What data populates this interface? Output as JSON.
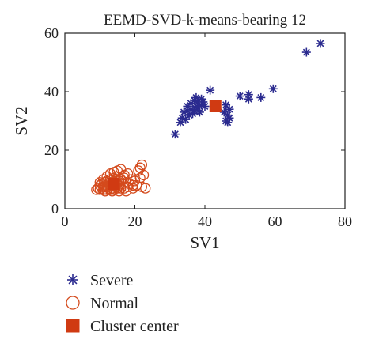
{
  "chart_data": {
    "type": "scatter",
    "title": "EEMD-SVD-k-means-bearing 12",
    "xlabel": "SV1",
    "ylabel": "SV2",
    "xlim": [
      0,
      80
    ],
    "ylim": [
      0,
      60
    ],
    "xticks": [
      0,
      20,
      40,
      60,
      80
    ],
    "yticks": [
      0,
      20,
      40,
      60
    ],
    "grid": false,
    "legend_position": "bottom-left",
    "series": [
      {
        "name": "Severe",
        "marker": "asterisk",
        "color": "#2b2b8f",
        "x": [
          31.5,
          33,
          33.5,
          34,
          34.5,
          35,
          35,
          35.5,
          36,
          36,
          36.5,
          37,
          37,
          37.5,
          37.5,
          38,
          38,
          38.5,
          39,
          39,
          39.5,
          40,
          41.5,
          45.5,
          46,
          46,
          46.5,
          46.5,
          47,
          47,
          50,
          52.5,
          52.5,
          56,
          59.5,
          69,
          73
        ],
        "y": [
          25.5,
          29.5,
          31,
          33,
          30.5,
          33.5,
          35,
          32,
          34,
          36,
          32.5,
          33.5,
          37,
          35,
          38,
          34.5,
          36.5,
          33,
          35.5,
          37.5,
          36.5,
          35,
          40.5,
          33,
          30,
          35.5,
          29.5,
          32,
          34,
          31,
          38.5,
          37.5,
          39,
          38,
          41,
          53.5,
          56.5
        ]
      },
      {
        "name": "Normal",
        "marker": "circle",
        "color": "#d44a1c",
        "x": [
          9,
          9.5,
          10,
          10,
          10.5,
          10.5,
          11,
          11,
          11.5,
          11.5,
          12,
          12,
          12,
          12.5,
          12.5,
          13,
          13,
          13,
          13.5,
          13.5,
          14,
          14,
          14,
          14.5,
          14.5,
          15,
          15,
          15.5,
          15.5,
          16,
          16,
          16.5,
          17,
          17,
          17.5,
          18,
          18,
          18.5,
          19,
          19.5,
          20,
          20.5,
          21,
          21.5,
          22,
          22,
          22.5,
          23,
          10,
          11,
          12,
          13,
          14,
          15,
          16,
          17,
          11.5,
          13.5,
          15.5,
          17.5,
          19.5,
          21.5
        ],
        "y": [
          6.5,
          7,
          6.5,
          8,
          7,
          8.5,
          6.5,
          7.5,
          8,
          9,
          6.5,
          7.5,
          9.5,
          7,
          8.5,
          6.5,
          8,
          10,
          7,
          9,
          6.5,
          8,
          10.5,
          7.5,
          9,
          7,
          11,
          8,
          9.5,
          7,
          10,
          8.5,
          7,
          11.5,
          9,
          7.5,
          12,
          8.5,
          10,
          7,
          9.5,
          8,
          13,
          10.5,
          7.5,
          15,
          11.5,
          7,
          9,
          10,
          11,
          12,
          12.5,
          13,
          13.5,
          10.5,
          6,
          6,
          6,
          6,
          8,
          14
        ]
      },
      {
        "name": "Cluster center",
        "marker": "square",
        "color": "#d03a12",
        "x": [
          14,
          43
        ],
        "y": [
          8.5,
          35
        ]
      }
    ]
  }
}
